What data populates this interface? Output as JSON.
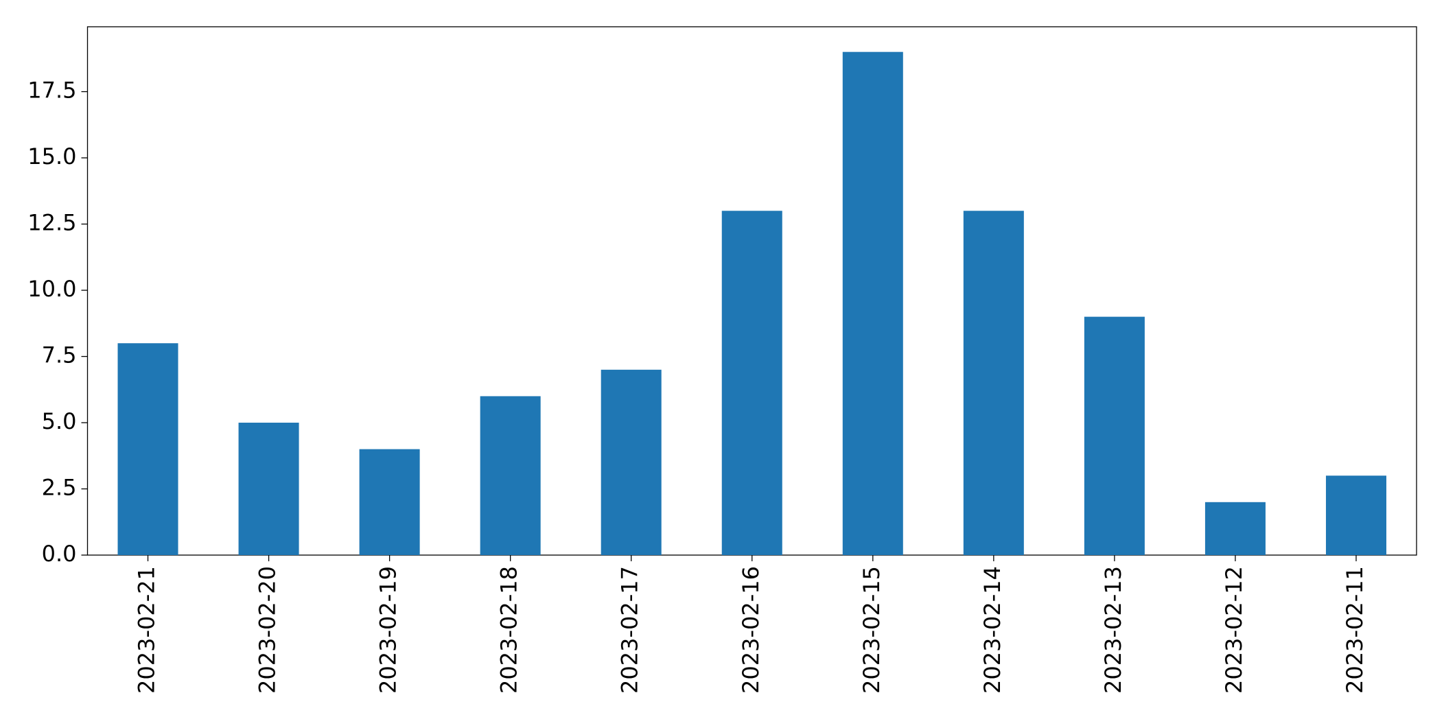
{
  "chart_data": {
    "type": "bar",
    "categories": [
      "2023-02-21",
      "2023-02-20",
      "2023-02-19",
      "2023-02-18",
      "2023-02-17",
      "2023-02-16",
      "2023-02-15",
      "2023-02-14",
      "2023-02-13",
      "2023-02-12",
      "2023-02-11"
    ],
    "values": [
      8,
      5,
      4,
      6,
      7,
      13,
      19,
      13,
      9,
      2,
      3
    ],
    "color": "#1f77b4",
    "ylim": [
      0,
      19.95
    ],
    "yticks": [
      {
        "value": 0,
        "label": "0.0"
      },
      2.5,
      {
        "value": 5,
        "label": "5.0"
      },
      7.5,
      {
        "value": 10,
        "label": "10.0"
      },
      12.5,
      {
        "value": 15,
        "label": "15.0"
      },
      17.5
    ],
    "grid": false
  }
}
